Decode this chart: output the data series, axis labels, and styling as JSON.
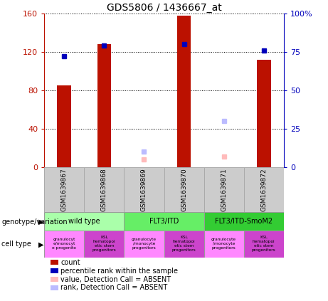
{
  "title": "GDS5806 / 1436667_at",
  "samples": [
    "GSM1639867",
    "GSM1639868",
    "GSM1639869",
    "GSM1639870",
    "GSM1639871",
    "GSM1639872"
  ],
  "bar_values": [
    85,
    128,
    null,
    158,
    null,
    112
  ],
  "percentile_values": [
    72,
    79,
    null,
    80,
    null,
    76
  ],
  "absent_value": [
    null,
    null,
    5,
    null,
    7,
    null
  ],
  "absent_rank": [
    null,
    null,
    10,
    null,
    30,
    null
  ],
  "ylim_left": [
    0,
    160
  ],
  "ylim_right": [
    0,
    100
  ],
  "yticks_left": [
    0,
    40,
    80,
    120,
    160
  ],
  "yticks_right": [
    0,
    25,
    50,
    75,
    100
  ],
  "ytick_labels_left": [
    "0",
    "40",
    "80",
    "120",
    "160"
  ],
  "ytick_labels_right": [
    "0",
    "25",
    "50",
    "75",
    "100%"
  ],
  "bar_color": "#bb1100",
  "percentile_color": "#0000bb",
  "absent_val_color": "#ffbbbb",
  "absent_rank_color": "#bbbbff",
  "genotype_groups": [
    {
      "label": "wild type",
      "span": [
        0,
        2
      ],
      "color": "#aaffaa"
    },
    {
      "label": "FLT3/ITD",
      "span": [
        2,
        4
      ],
      "color": "#66ee66"
    },
    {
      "label": "FLT3/ITD-SmoM2",
      "span": [
        4,
        6
      ],
      "color": "#33cc33"
    }
  ],
  "cell_colors": [
    "#ff88ff",
    "#cc44cc",
    "#ff88ff",
    "#cc44cc",
    "#ff88ff",
    "#cc44cc"
  ],
  "cell_labels": [
    "granulocyt\ne/monocyt\ne progenito",
    "KSL\nhematopoi\netic stem\nprogenitors",
    "granulocyte\n/monocyte\nprogenitors",
    "KSL\nhematopoi\netic stem\nprogenitors",
    "granulocyte\n/monocyte\nprogenitors",
    "KSL\nhematopoi\netic stem\nprogenitors"
  ],
  "legend_items": [
    {
      "label": "count",
      "color": "#bb1100"
    },
    {
      "label": "percentile rank within the sample",
      "color": "#0000bb"
    },
    {
      "label": "value, Detection Call = ABSENT",
      "color": "#ffbbbb"
    },
    {
      "label": "rank, Detection Call = ABSENT",
      "color": "#bbbbff"
    }
  ],
  "sample_bg_color": "#cccccc",
  "sample_border_color": "#aaaaaa",
  "left_axis_color": "#bb1100",
  "right_axis_color": "#0000bb"
}
